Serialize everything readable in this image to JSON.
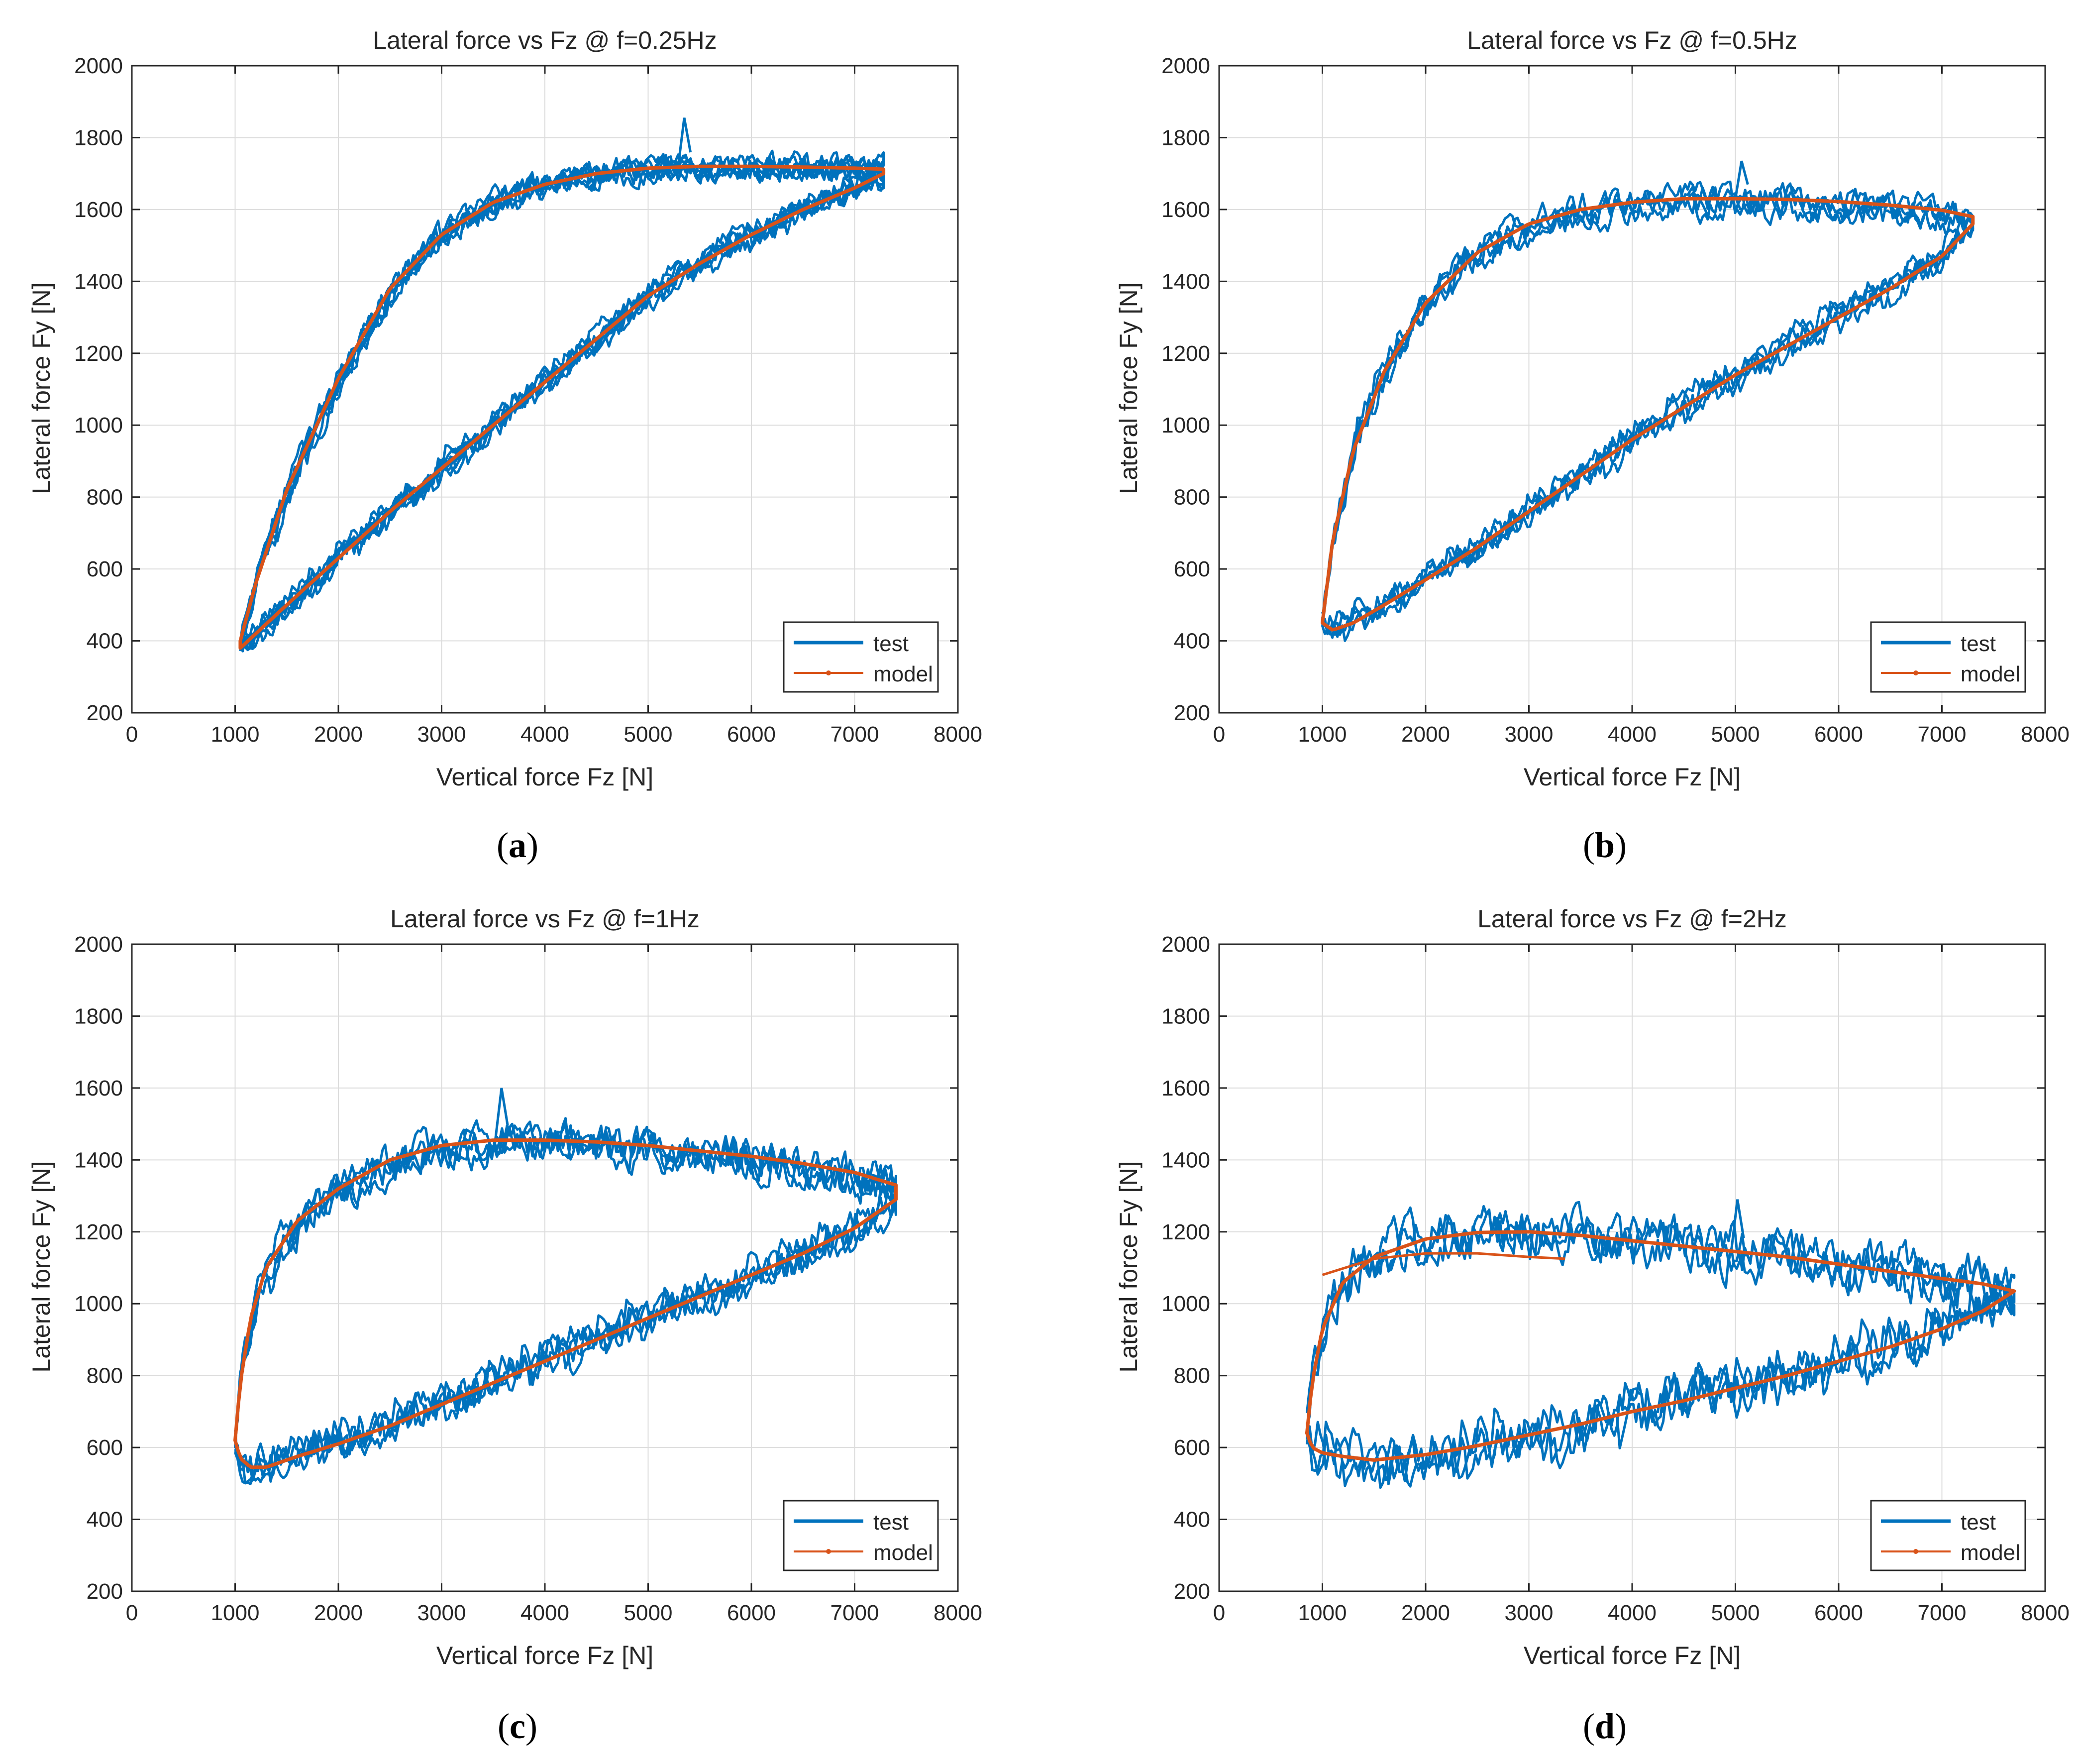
{
  "figure": {
    "panel_captions": [
      {
        "open": "(",
        "letter": "a",
        "close": ")"
      },
      {
        "open": "(",
        "letter": "b",
        "close": ")"
      },
      {
        "open": "(",
        "letter": "c",
        "close": ")"
      },
      {
        "open": "(",
        "letter": "d",
        "close": ")"
      }
    ]
  },
  "colors": {
    "test": "#0072BD",
    "model": "#D95319",
    "grid": "#DCDCDC",
    "axis": "#262626"
  },
  "chart_data": [
    {
      "type": "line",
      "title": "Lateral force vs Fz @ f=0.25Hz",
      "xlabel": "Vertical force Fz [N]",
      "ylabel": "Lateral force Fy [N]",
      "xlim": [
        0,
        8000
      ],
      "ylim": [
        200,
        2000
      ],
      "xticks": [
        0,
        1000,
        2000,
        3000,
        4000,
        5000,
        6000,
        7000,
        8000
      ],
      "yticks": [
        200,
        400,
        600,
        800,
        1000,
        1200,
        1400,
        1600,
        1800,
        2000
      ],
      "grid": true,
      "legend": {
        "position": "bottom-right",
        "entries": [
          "test",
          "model"
        ]
      },
      "series": [
        {
          "name": "model",
          "color": "#D95319",
          "upper": {
            "x": [
              1050,
              1200,
              1500,
              2000,
              2500,
              3000,
              3500,
              4000,
              4500,
              5000,
              5500,
              6000,
              6500,
              7000,
              7280
            ],
            "y": [
              400,
              560,
              820,
              1130,
              1380,
              1530,
              1620,
              1670,
              1700,
              1715,
              1720,
              1720,
              1718,
              1715,
              1712
            ]
          },
          "lower": {
            "x": [
              1050,
              1200,
              1500,
              2000,
              2500,
              3000,
              3500,
              4000,
              4500,
              5000,
              5500,
              6000,
              6500,
              7000,
              7280
            ],
            "y": [
              380,
              420,
              500,
              630,
              760,
              880,
              1000,
              1120,
              1240,
              1360,
              1450,
              1530,
              1600,
              1660,
              1700
            ]
          }
        },
        {
          "name": "test",
          "color": "#0072BD",
          "noise_amplitude": 40,
          "cycles": 6,
          "spread": 35,
          "peak": {
            "x": 5350,
            "y": 1855
          }
        }
      ]
    },
    {
      "type": "line",
      "title": "Lateral force vs Fz @ f=0.5Hz",
      "xlabel": "Vertical force Fz [N]",
      "ylabel": "Lateral force Fy [N]",
      "xlim": [
        0,
        8000
      ],
      "ylim": [
        200,
        2000
      ],
      "xticks": [
        0,
        1000,
        2000,
        3000,
        4000,
        5000,
        6000,
        7000,
        8000
      ],
      "yticks": [
        200,
        400,
        600,
        800,
        1000,
        1200,
        1400,
        1600,
        1800,
        2000
      ],
      "grid": true,
      "legend": {
        "position": "bottom-right",
        "entries": [
          "test",
          "model"
        ]
      },
      "series": [
        {
          "name": "model",
          "color": "#D95319",
          "upper": {
            "x": [
              1000,
              1100,
              1300,
              1600,
              2000,
              2500,
              3000,
              3500,
              4000,
              4500,
              5000,
              5500,
              6000,
              6500,
              7000,
              7300
            ],
            "y": [
              450,
              680,
              930,
              1150,
              1340,
              1480,
              1560,
              1600,
              1620,
              1630,
              1630,
              1628,
              1622,
              1612,
              1598,
              1580
            ]
          },
          "lower": {
            "x": [
              1000,
              1100,
              1300,
              1600,
              2000,
              2500,
              3000,
              3500,
              4000,
              4500,
              5000,
              5500,
              6000,
              6500,
              7000,
              7300
            ],
            "y": [
              450,
              430,
              450,
              500,
              570,
              660,
              760,
              860,
              960,
              1050,
              1140,
              1220,
              1300,
              1380,
              1470,
              1560
            ]
          }
        },
        {
          "name": "test",
          "color": "#0072BD",
          "noise_amplitude": 45,
          "cycles": 4,
          "spread": 30,
          "peak": {
            "x": 5060,
            "y": 1735
          }
        }
      ]
    },
    {
      "type": "line",
      "title": "Lateral force vs Fz @ f=1Hz",
      "xlabel": "Vertical force Fz [N]",
      "ylabel": "Lateral force Fy [N]",
      "xlim": [
        0,
        8000
      ],
      "ylim": [
        200,
        2000
      ],
      "xticks": [
        0,
        1000,
        2000,
        3000,
        4000,
        5000,
        6000,
        7000,
        8000
      ],
      "yticks": [
        200,
        400,
        600,
        800,
        1000,
        1200,
        1400,
        1600,
        1800,
        2000
      ],
      "grid": true,
      "legend": {
        "position": "bottom-right",
        "entries": [
          "test",
          "model"
        ]
      },
      "series": [
        {
          "name": "model",
          "color": "#D95319",
          "upper": {
            "x": [
              1000,
              1050,
              1150,
              1300,
              1600,
              2000,
              2500,
              3000,
              3500,
              4000,
              4500,
              5000,
              5500,
              6000,
              6500,
              7000,
              7400
            ],
            "y": [
              620,
              780,
              960,
              1100,
              1230,
              1320,
              1400,
              1440,
              1455,
              1455,
              1450,
              1440,
              1425,
              1410,
              1390,
              1365,
              1330
            ]
          },
          "lower": {
            "x": [
              1000,
              1050,
              1150,
              1300,
              1600,
              2000,
              2500,
              3000,
              3500,
              4000,
              4500,
              5000,
              5500,
              6000,
              6500,
              7000,
              7400
            ],
            "y": [
              620,
              570,
              545,
              545,
              575,
              610,
              660,
              720,
              780,
              840,
              900,
              960,
              1020,
              1080,
              1140,
              1210,
              1290
            ]
          }
        },
        {
          "name": "test",
          "color": "#0072BD",
          "noise_amplitude": 60,
          "cycles": 4,
          "spread": 25,
          "peak": {
            "x": 3580,
            "y": 1600
          }
        }
      ]
    },
    {
      "type": "line",
      "title": "Lateral force vs Fz @ f=2Hz",
      "xlabel": "Vertical force Fz [N]",
      "ylabel": "Lateral force Fy [N]",
      "xlim": [
        0,
        8000
      ],
      "ylim": [
        200,
        2000
      ],
      "xticks": [
        0,
        1000,
        2000,
        3000,
        4000,
        5000,
        6000,
        7000,
        8000
      ],
      "yticks": [
        200,
        400,
        600,
        800,
        1000,
        1200,
        1400,
        1600,
        1800,
        2000
      ],
      "grid": true,
      "legend": {
        "position": "bottom-right",
        "entries": [
          "test",
          "model"
        ]
      },
      "series": [
        {
          "name": "model",
          "color": "#D95319",
          "upper": {
            "x": [
              850,
              900,
              1000,
              1200,
              1500,
              2000,
              2500,
              3000,
              3500,
              4000,
              4500,
              5000,
              5500,
              6000,
              6500,
              7000,
              7400,
              7700
            ],
            "y": [
              640,
              780,
              930,
              1060,
              1130,
              1180,
              1198,
              1200,
              1190,
              1175,
              1160,
              1145,
              1130,
              1110,
              1090,
              1070,
              1055,
              1035
            ]
          },
          "lower": {
            "x": [
              850,
              900,
              1000,
              1200,
              1500,
              2000,
              2500,
              3000,
              3500,
              4000,
              4500,
              5000,
              5500,
              6000,
              6500,
              7000,
              7400,
              7700
            ],
            "y": [
              640,
              600,
              585,
              575,
              565,
              580,
              605,
              635,
              665,
              700,
              730,
              765,
              800,
              840,
              880,
              930,
              980,
              1035
            ]
          },
          "tail": {
            "x": [
              1000,
              1500,
              2000,
              2500,
              3000,
              3350
            ],
            "y": [
              1080,
              1125,
              1140,
              1140,
              1130,
              1125
            ]
          }
        },
        {
          "name": "test",
          "color": "#0072BD",
          "noise_amplitude": 80,
          "cycles": 3,
          "spread": 20,
          "peak": {
            "x": 5020,
            "y": 1290
          }
        }
      ]
    }
  ]
}
